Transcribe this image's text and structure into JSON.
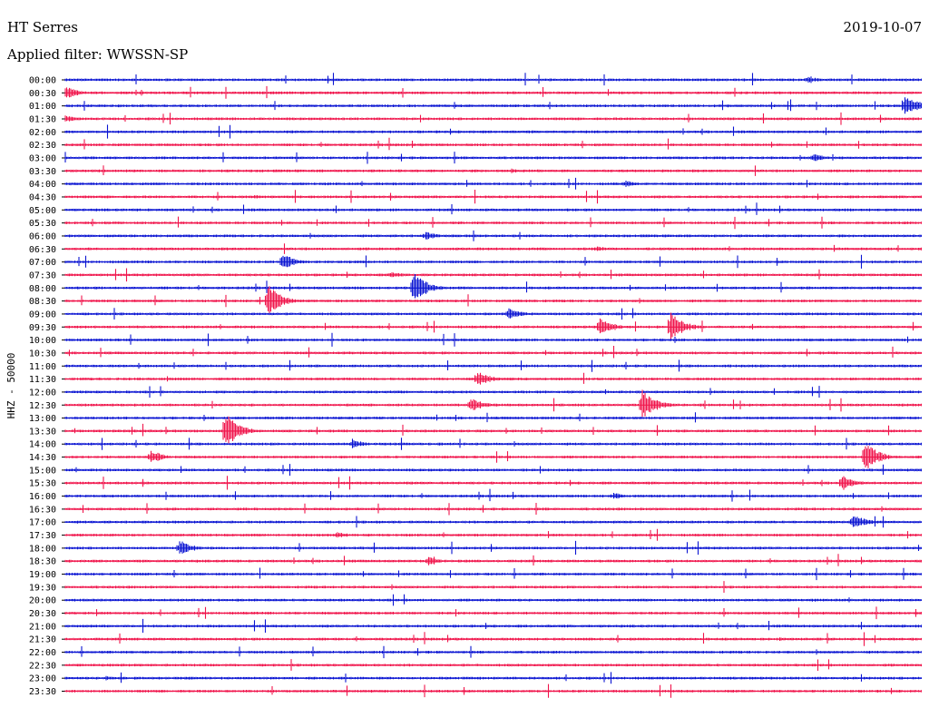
{
  "header": {
    "station": "HT Serres",
    "date": "2019-10-07",
    "filter_text": "Applied filter: WWSSN-SP"
  },
  "colors": {
    "trace_even": "#0a14d2",
    "trace_odd": "#f0144b",
    "axis": "#000000"
  },
  "chart_data": {
    "type": "line",
    "title": "HT Serres",
    "subtitle": "Applied filter: WWSSN-SP",
    "ylabel": "HHZ - 50000",
    "xlabel": "",
    "y_tick_labels": [
      "00:00",
      "00:30",
      "01:00",
      "01:30",
      "02:00",
      "02:30",
      "03:00",
      "03:30",
      "04:00",
      "04:30",
      "05:00",
      "05:30",
      "06:00",
      "06:30",
      "07:00",
      "07:30",
      "08:00",
      "08:30",
      "09:00",
      "09:30",
      "10:00",
      "10:30",
      "11:00",
      "11:30",
      "12:00",
      "12:30",
      "13:00",
      "13:30",
      "14:00",
      "14:30",
      "15:00",
      "15:30",
      "16:00",
      "16:30",
      "17:00",
      "17:30",
      "18:00",
      "18:30",
      "19:00",
      "19:30",
      "20:00",
      "20:30",
      "21:00",
      "21:30",
      "22:00",
      "22:30",
      "23:00",
      "23:30"
    ],
    "trace_minutes": 30,
    "grid": false,
    "legend": "none",
    "series_colors": [
      "trace_even",
      "trace_odd"
    ],
    "events": [
      {
        "line": "00:00",
        "minute": 26,
        "amp": 0.3
      },
      {
        "line": "00:30",
        "minute": 0,
        "amp": 0.55
      },
      {
        "line": "01:00",
        "minute": 29.4,
        "amp": 0.9
      },
      {
        "line": "01:30",
        "minute": 0,
        "amp": 0.3
      },
      {
        "line": "03:00",
        "minute": 26.2,
        "amp": 0.35
      },
      {
        "line": "03:30",
        "minute": 15.6,
        "amp": 0.2
      },
      {
        "line": "04:00",
        "minute": 19.6,
        "amp": 0.3
      },
      {
        "line": "04:30",
        "minute": 6.6,
        "amp": 0.2
      },
      {
        "line": "06:00",
        "minute": 12.6,
        "amp": 0.4
      },
      {
        "line": "06:30",
        "minute": 18.6,
        "amp": 0.25
      },
      {
        "line": "07:00",
        "minute": 7.6,
        "amp": 0.75
      },
      {
        "line": "07:30",
        "minute": 11.4,
        "amp": 0.3
      },
      {
        "line": "08:00",
        "minute": 12.2,
        "amp": 1.3
      },
      {
        "line": "08:30",
        "minute": 7.1,
        "amp": 1.3
      },
      {
        "line": "09:00",
        "minute": 15.5,
        "amp": 0.5
      },
      {
        "line": "09:30",
        "minute": 21.2,
        "amp": 1.2
      },
      {
        "line": "09:30",
        "minute": 18.7,
        "amp": 0.8
      },
      {
        "line": "11:30",
        "minute": 14.4,
        "amp": 0.7
      },
      {
        "line": "12:30",
        "minute": 20.2,
        "amp": 1.3
      },
      {
        "line": "12:30",
        "minute": 14.2,
        "amp": 0.6
      },
      {
        "line": "13:30",
        "minute": 5.6,
        "amp": 1.5
      },
      {
        "line": "14:00",
        "minute": 10.1,
        "amp": 0.35
      },
      {
        "line": "14:30",
        "minute": 3.0,
        "amp": 0.6
      },
      {
        "line": "14:30",
        "minute": 28.0,
        "amp": 1.3
      },
      {
        "line": "15:30",
        "minute": 27.2,
        "amp": 0.7
      },
      {
        "line": "16:00",
        "minute": 19.2,
        "amp": 0.3
      },
      {
        "line": "17:00",
        "minute": 27.6,
        "amp": 0.65
      },
      {
        "line": "17:30",
        "minute": 9.5,
        "amp": 0.3
      },
      {
        "line": "18:00",
        "minute": 4.0,
        "amp": 0.65
      },
      {
        "line": "18:30",
        "minute": 12.7,
        "amp": 0.35
      },
      {
        "line": "21:30",
        "minute": 25.0,
        "amp": 0.15
      },
      {
        "line": "23:00",
        "minute": 1.4,
        "amp": 0.2
      }
    ]
  }
}
